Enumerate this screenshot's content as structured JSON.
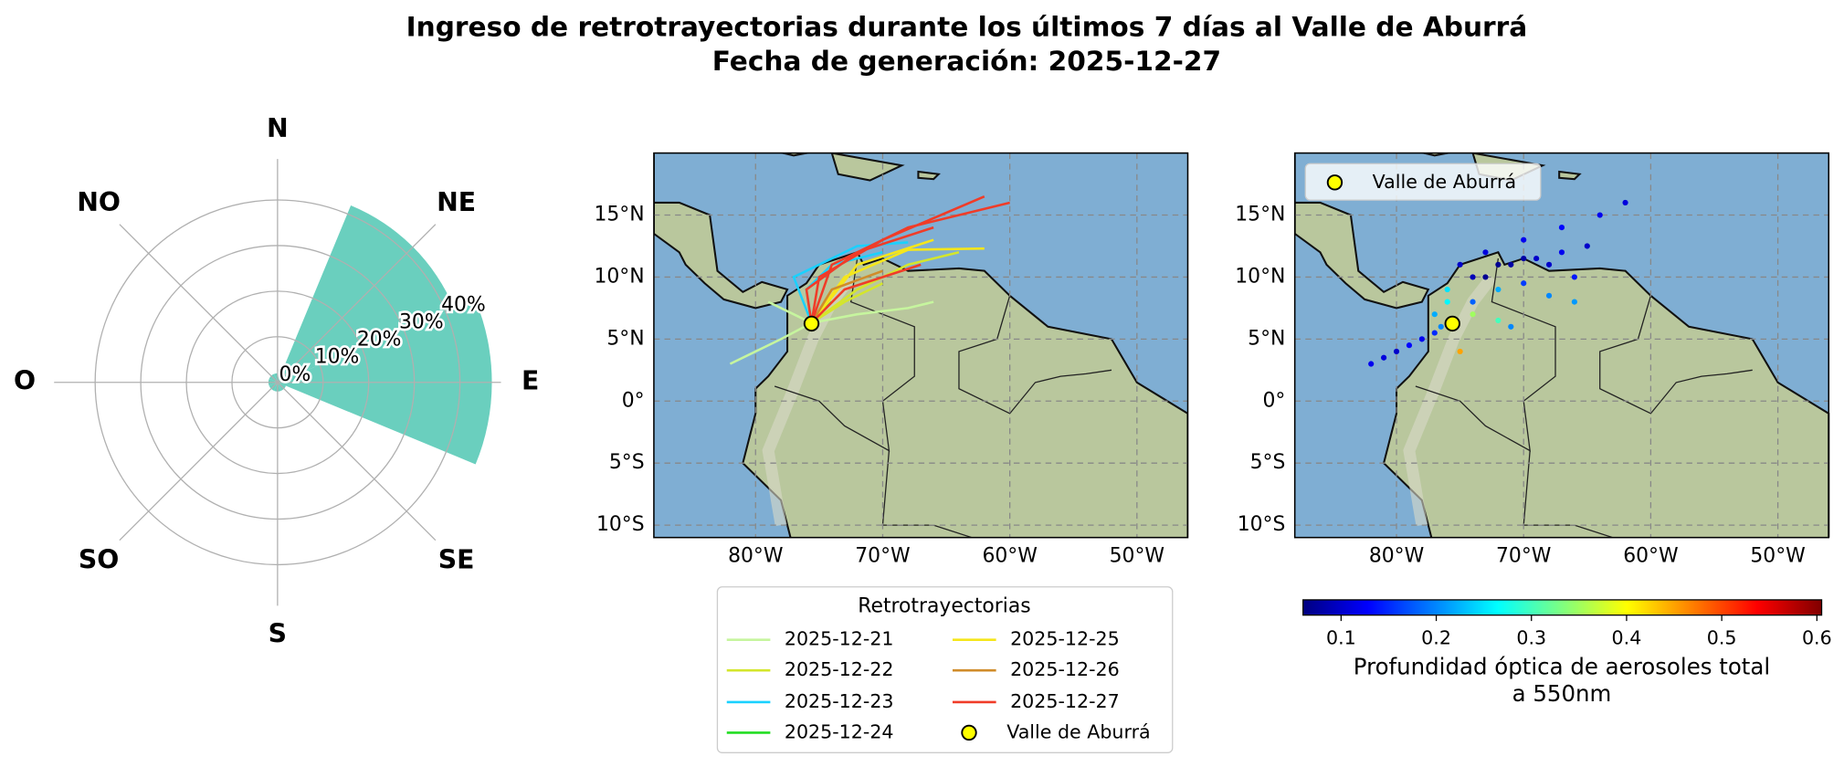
{
  "chart_data": [
    {
      "type": "polar-bar",
      "title": [
        "Ingreso de retrotrayectorias durante los últimos 7 días al Valle de Aburrá",
        "Fecha de generación: 2025-12-27"
      ],
      "categories": [
        "N",
        "NE",
        "E",
        "SE",
        "S",
        "SO",
        "O",
        "NO"
      ],
      "values": [
        2,
        42,
        47,
        2,
        2,
        2,
        2,
        2
      ],
      "color": "#6acfbe",
      "rlim": [
        0,
        49
      ],
      "rticks": [
        {
          "value": 0,
          "label": "0%"
        },
        {
          "value": 10,
          "label": "10%"
        },
        {
          "value": 20,
          "label": "20%"
        },
        {
          "value": 30,
          "label": "30%"
        },
        {
          "value": 40,
          "label": "40%"
        }
      ],
      "grid": true
    },
    {
      "type": "line-map",
      "xlim": [
        -88,
        -46
      ],
      "ylim": [
        -11,
        20
      ],
      "xticks": [
        {
          "value": -80,
          "label": "80°W"
        },
        {
          "value": -70,
          "label": "70°W"
        },
        {
          "value": -60,
          "label": "60°W"
        },
        {
          "value": -50,
          "label": "50°W"
        }
      ],
      "yticks": [
        {
          "value": -10,
          "label": "10°S"
        },
        {
          "value": -5,
          "label": "5°S"
        },
        {
          "value": 0,
          "label": "0°"
        },
        {
          "value": 5,
          "label": "5°N"
        },
        {
          "value": 10,
          "label": "10°N"
        },
        {
          "value": 15,
          "label": "15°N"
        }
      ],
      "grid": true,
      "legend_title": "Retrotrayectorias",
      "series": [
        {
          "name": "2025-12-21",
          "color": "#c6f59e",
          "lines": [
            {
              "x": [
                -75.6,
                -78,
                -80,
                -82
              ],
              "y": [
                6.3,
                5,
                4,
                3
              ]
            },
            {
              "x": [
                -75.6,
                -72,
                -68,
                -66
              ],
              "y": [
                6.3,
                7,
                7.5,
                8
              ]
            },
            {
              "x": [
                -75.6,
                -77,
                -79
              ],
              "y": [
                6.3,
                7,
                8
              ]
            }
          ]
        },
        {
          "name": "2025-12-22",
          "color": "#d4e62c",
          "lines": [
            {
              "x": [
                -75.6,
                -72,
                -68,
                -64
              ],
              "y": [
                6.3,
                9,
                11,
                12
              ]
            },
            {
              "x": [
                -75.6,
                -73,
                -70
              ],
              "y": [
                6.3,
                8,
                9.5
              ]
            }
          ]
        },
        {
          "name": "2025-12-23",
          "color": "#1ad1ff",
          "lines": [
            {
              "x": [
                -75.6,
                -76,
                -74,
                -70
              ],
              "y": [
                6.3,
                9,
                11,
                12
              ]
            },
            {
              "x": [
                -75.6,
                -77,
                -72,
                -68
              ],
              "y": [
                6.3,
                10,
                12.5,
                12.8
              ]
            }
          ]
        },
        {
          "name": "2025-12-24",
          "color": "#22dd22",
          "lines": [
            {
              "x": [
                -75.6,
                -75,
                -74
              ],
              "y": [
                6.3,
                7,
                8
              ]
            }
          ]
        },
        {
          "name": "2025-12-25",
          "color": "#f5e61b",
          "lines": [
            {
              "x": [
                -75.6,
                -73,
                -68,
                -62
              ],
              "y": [
                6.3,
                10,
                12.2,
                12.3
              ]
            },
            {
              "x": [
                -75.6,
                -72,
                -66
              ],
              "y": [
                6.3,
                11,
                13
              ]
            }
          ]
        },
        {
          "name": "2025-12-26",
          "color": "#d08c2a",
          "lines": [
            {
              "x": [
                -75.6,
                -74,
                -70
              ],
              "y": [
                6.3,
                9,
                10.5
              ]
            }
          ]
        },
        {
          "name": "2025-12-27",
          "color": "#f03c28",
          "lines": [
            {
              "x": [
                -75.6,
                -75,
                -70,
                -62
              ],
              "y": [
                6.3,
                10,
                13,
                16.5
              ]
            },
            {
              "x": [
                -75.6,
                -74,
                -68,
                -60
              ],
              "y": [
                6.3,
                11,
                14,
                16
              ]
            },
            {
              "x": [
                -75.6,
                -76,
                -72,
                -66
              ],
              "y": [
                6.3,
                9,
                12,
                14
              ]
            },
            {
              "x": [
                -75.6,
                -73,
                -67
              ],
              "y": [
                6.3,
                9,
                11
              ]
            }
          ]
        }
      ],
      "site": {
        "name": "Valle de Aburrá",
        "lon": -75.6,
        "lat": 6.25,
        "color": "#ffff00"
      }
    },
    {
      "type": "scatter-map",
      "xlim": [
        -88,
        -46
      ],
      "ylim": [
        -11,
        20
      ],
      "xticks": [
        {
          "value": -80,
          "label": "80°W"
        },
        {
          "value": -70,
          "label": "70°W"
        },
        {
          "value": -60,
          "label": "60°W"
        },
        {
          "value": -50,
          "label": "50°W"
        }
      ],
      "yticks": [
        {
          "value": -10,
          "label": "10°S"
        },
        {
          "value": -5,
          "label": "5°S"
        },
        {
          "value": 0,
          "label": "0°"
        },
        {
          "value": 5,
          "label": "5°N"
        },
        {
          "value": 10,
          "label": "10°N"
        },
        {
          "value": 15,
          "label": "15°N"
        }
      ],
      "grid": true,
      "x": [
        -82,
        -81,
        -80,
        -79,
        -78,
        -77,
        -76.5,
        -74,
        -72,
        -70,
        -68,
        -66,
        -73,
        -71,
        -69,
        -67,
        -65,
        -75,
        -73,
        -70,
        -67,
        -64,
        -62,
        -76,
        -74,
        -72,
        -70,
        -68,
        -66,
        -77,
        -76,
        -74,
        -75,
        -72,
        -71
      ],
      "y": [
        3,
        3.5,
        4,
        4.5,
        5,
        5.5,
        6,
        8,
        9,
        9.5,
        8.5,
        8,
        10,
        11,
        11.5,
        12,
        12.5,
        11,
        12,
        13,
        14,
        15,
        16,
        9,
        10,
        11,
        11.5,
        11,
        10,
        7,
        8,
        7,
        4,
        6.5,
        6
      ],
      "values": [
        0.12,
        0.11,
        0.1,
        0.13,
        0.12,
        0.15,
        0.2,
        0.18,
        0.22,
        0.16,
        0.2,
        0.21,
        0.07,
        0.08,
        0.1,
        0.12,
        0.1,
        0.1,
        0.11,
        0.12,
        0.13,
        0.12,
        0.11,
        0.25,
        0.09,
        0.07,
        0.08,
        0.1,
        0.14,
        0.22,
        0.26,
        0.35,
        0.45,
        0.3,
        0.2
      ],
      "colormap": "jet",
      "clim": [
        0.06,
        0.605
      ],
      "cticks": [
        0.1,
        0.2,
        0.3,
        0.4,
        0.5,
        0.6
      ],
      "colorbar_label": [
        "Profundidad óptica de aerosoles total",
        "a 550nm"
      ],
      "site": {
        "name": "Valle de Aburrá",
        "lon": -75.6,
        "lat": 6.25,
        "color": "#ffff00"
      }
    }
  ]
}
